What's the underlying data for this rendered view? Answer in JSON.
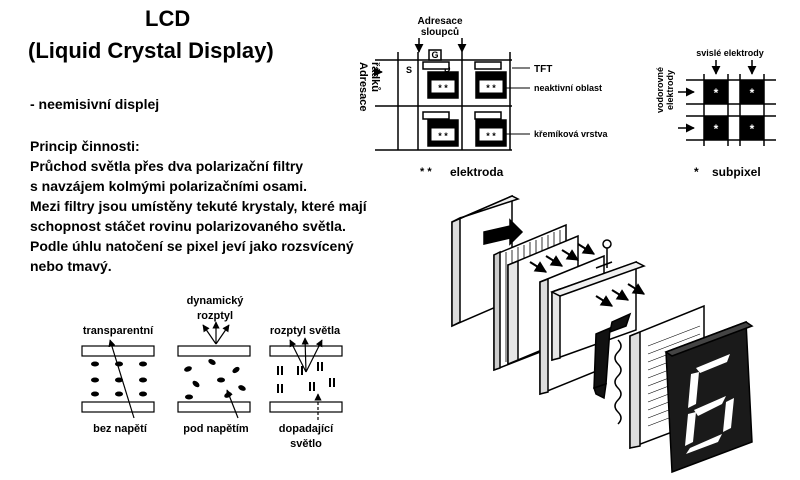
{
  "title": {
    "line1": "LCD",
    "line2": "(Liquid Crystal Display)"
  },
  "subtitle": "- neemisivní displej",
  "principle": {
    "heading": "Princip činnosti:",
    "lines": [
      "Průchod světla přes dva polarizační filtry",
      "s navzájem kolmými polarizačními osami.",
      "Mezi filtry jsou umístěny tekuté krystaly, které mají",
      "schopnost stáčet rovinu polarizovaného světla.",
      "Podle úhlu natočení se pixel jeví jako rozsvícený",
      "nebo tmavý."
    ]
  },
  "matrix_diagram": {
    "column_address": [
      "Adresace",
      "sloupců"
    ],
    "row_address": [
      "Adresace",
      "řádků"
    ],
    "gate": "G",
    "source": "S",
    "drain": "D",
    "tft": "TFT",
    "inactive_area": "neaktivní oblast",
    "silicon_layer": "křemíková vrstva",
    "electrode_marker": "* *",
    "electrode_legend_symbol": "* *",
    "electrode_legend": "elektroda"
  },
  "subpixel_diagram": {
    "vertical_electrodes": "svislé elektrody",
    "horizontal_electrodes": [
      "vodorovné",
      "elektrody"
    ],
    "marker": "*",
    "legend_symbol": "*",
    "legend": "subpixel"
  },
  "crystal_states": {
    "dynamic_scattering": [
      "dynamický",
      "rozptyl"
    ],
    "transparent": "transparentní",
    "light_scattering": "rozptyl světla",
    "no_voltage": "bez napětí",
    "under_voltage": "pod napětím",
    "incident_light": [
      "dopadající",
      "světlo"
    ]
  }
}
